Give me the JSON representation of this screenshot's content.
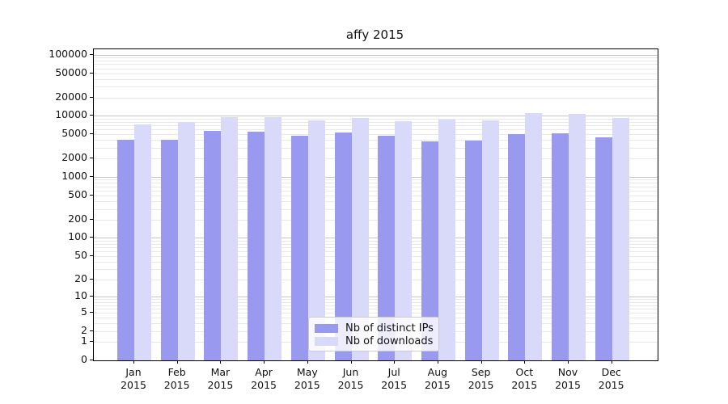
{
  "title": "affy 2015",
  "chart_data": {
    "type": "bar",
    "title": "affy 2015",
    "categories": [
      "Jan",
      "Feb",
      "Mar",
      "Apr",
      "May",
      "Jun",
      "Jul",
      "Aug",
      "Sep",
      "Oct",
      "Nov",
      "Dec"
    ],
    "x_tick_year": "2015",
    "series": [
      {
        "name": "Nb of distinct IPs",
        "color": "#9999f0",
        "values": [
          4050,
          4060,
          5650,
          5450,
          4800,
          5280,
          4680,
          3780,
          3960,
          5020,
          5170,
          4480
        ]
      },
      {
        "name": "Nb of downloads",
        "color": "#d9d9fa",
        "values": [
          7300,
          7920,
          9510,
          9530,
          8340,
          9130,
          8170,
          8760,
          8490,
          10970,
          10870,
          9210
        ]
      }
    ],
    "y_ticks": [
      0,
      1,
      2,
      5,
      10,
      20,
      50,
      100,
      200,
      500,
      1000,
      2000,
      5000,
      10000,
      20000,
      50000,
      100000
    ],
    "y_scale": "log1p",
    "ylim": [
      0,
      122000
    ],
    "grid": "horizontal log minor and major gridlines",
    "legend_position": "inside lower center",
    "gridline_minor_color": "#e8e8e8",
    "gridline_major_color": "#c6c6c6",
    "xlabel": "",
    "ylabel": ""
  }
}
